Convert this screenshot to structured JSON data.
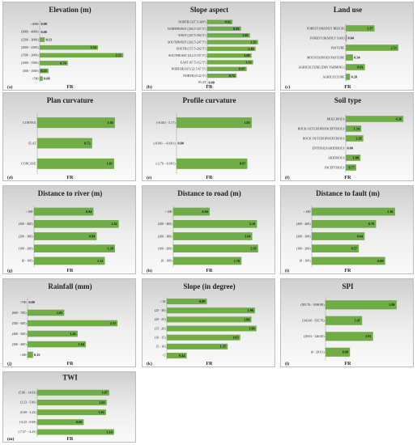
{
  "axis_label": "FR",
  "bar_color": "#70ad47",
  "chart_data": [
    {
      "type": "bar",
      "orientation": "horizontal",
      "tag": "(a)",
      "title": "Elevation (m)",
      "categories": [
        ">4000",
        "(3000 - 4000)",
        "(2500 - 3000)",
        "(2000 - 2500)",
        "(1500 - 2000)",
        "(1000 - 1500)",
        "(500 - 1000)",
        "<500"
      ],
      "values": [
        0.0,
        0.0,
        0.13,
        1.54,
        2.21,
        0.74,
        0.23,
        0.08
      ],
      "labels": [
        "0.00",
        "0.00",
        "0.13",
        "1.54",
        "2.21",
        "0.74",
        "0.23",
        "0.08"
      ],
      "xlim": [
        0,
        2.4
      ],
      "xlabel": "FR"
    },
    {
      "type": "bar",
      "orientation": "horizontal",
      "tag": "(b)",
      "title": "Slope aspect",
      "categories": [
        "NORTH (337.5-360°)",
        "NORTHWEST (292.5-337.5°)",
        "WEST (247.5-292.5°)",
        "SOUTHWEST (202.5-247.5°)",
        "SOUTH (157.5-202.5°)",
        "SOUTHEAST (112.5-157.5°)",
        "EAST (67.5-112.5°)",
        "NORTHEAST (22.5-67.5°)",
        "NORTH (0-22.5°)",
        "FLAT"
      ],
      "values": [
        0.62,
        0.83,
        1.05,
        1.25,
        1.19,
        1.09,
        1.13,
        0.97,
        0.72,
        0.0
      ],
      "labels": [
        "0.62",
        "0.83",
        "1.05",
        "1.25",
        "1.19",
        "1.09",
        "1.13",
        "0.97",
        "0.72",
        "0.00"
      ],
      "xlim": [
        0,
        1.5
      ],
      "xlabel": "FR"
    },
    {
      "type": "bar",
      "orientation": "horizontal",
      "tag": "(c)",
      "title": "Land use",
      "categories": [
        "FOREST (MAINLY BEECH)",
        "FOREST (MAINLY OAK)",
        "PASTURE",
        "MOUNTAINOUS PASTURE",
        "AGRICULTURE (DRY FARMING)",
        "AGRICULTURE"
      ],
      "values": [
        1.37,
        0.04,
        2.51,
        0.34,
        0.91,
        0.2
      ],
      "labels": [
        "1.37",
        "0.04",
        "2.51",
        "0.34",
        "0.91",
        "0.20"
      ],
      "xlim": [
        0,
        2.9
      ],
      "xlabel": "FR"
    },
    {
      "type": "bar",
      "orientation": "horizontal",
      "tag": "(d)",
      "title": "Plan curvature",
      "categories": [
        "CONVEX",
        "FLAT",
        "CONCAVE"
      ],
      "values": [
        1.02,
        0.72,
        1.01
      ],
      "labels": [
        "1.02",
        "0.72",
        "1.01"
      ],
      "xlim": [
        0,
        1.15
      ],
      "xlabel": "FR"
    },
    {
      "type": "bar",
      "orientation": "horizontal",
      "tag": "(e)",
      "title": "Profile curvature",
      "categories": [
        "(+0.001 - 5.17)",
        "(-0.001 - +0.001)",
        "(-2.76 - -0.001)"
      ],
      "values": [
        1.03,
        0.0,
        0.97
      ],
      "labels": [
        "1.03",
        "0.00",
        "0.97"
      ],
      "xlim": [
        0,
        1.2
      ],
      "xlabel": "FR"
    },
    {
      "type": "bar",
      "orientation": "horizontal",
      "tag": "(f)",
      "title": "Soil type",
      "categories": [
        "MOLLISOLS",
        "ROCK OUTCROPS/INCEPTISOLS",
        "ROCK OUTCROPS/ENTISOLS",
        "ENTISOLS/ARIDISOLS",
        "ARIDISOLS",
        "INCEPTISOLS"
      ],
      "values": [
        4.26,
        1.14,
        1.29,
        0.0,
        1.08,
        0.77
      ],
      "labels": [
        "4.26",
        "1.14",
        "1.29",
        "0.00",
        "1.08",
        "0.77"
      ],
      "xlim": [
        0,
        4.5
      ],
      "xlabel": "FR"
    },
    {
      "type": "bar",
      "orientation": "horizontal",
      "tag": "(g)",
      "title": "Distance to river (m)",
      "categories": [
        "> 400",
        "(300 - 400)",
        "(200 - 300)",
        "(100 - 200)",
        "(0 - 100)"
      ],
      "values": [
        0.94,
        1.34,
        0.99,
        1.28,
        1.12
      ],
      "labels": [
        "0.94",
        "1.34",
        "0.99",
        "1.28",
        "1.12"
      ],
      "xlim": [
        0,
        1.5
      ],
      "xlabel": "FR"
    },
    {
      "type": "bar",
      "orientation": "horizontal",
      "tag": "(h)",
      "title": "Distance to road (m)",
      "categories": [
        "> 400",
        "(300 - 400)",
        "(200 - 300)",
        "(100 - 200)",
        "(0 - 100)"
      ],
      "values": [
        0.94,
        2.16,
        2.04,
        2.19,
        1.76
      ],
      "labels": [
        "0.94",
        "2.16",
        "2.04",
        "2.19",
        "1.76"
      ],
      "xlim": [
        0,
        2.45
      ],
      "xlabel": "FR"
    },
    {
      "type": "bar",
      "orientation": "horizontal",
      "tag": "(i)",
      "title": "Distance to fault (m)",
      "categories": [
        "> 400",
        "(300 - 400)",
        "(200 - 300)",
        "(100 - 200)",
        "(0 - 100)"
      ],
      "values": [
        1.01,
        0.78,
        0.64,
        0.57,
        0.89
      ],
      "labels": [
        "1.01",
        "0.78",
        "0.64",
        "0.57",
        "0.89"
      ],
      "xlim": [
        0,
        1.15
      ],
      "xlabel": "FR"
    },
    {
      "type": "bar",
      "orientation": "horizontal",
      "tag": "(j)",
      "title": "Rainfall (mm)",
      "categories": [
        ">700",
        "(600 - 700)",
        "(500 - 600)",
        "(400 - 500)",
        "(300 - 400)",
        "<300"
      ],
      "values": [
        0.0,
        1.03,
        2.53,
        1.41,
        1.64,
        0.15
      ],
      "labels": [
        "0.00",
        "1.03",
        "2.53",
        "1.41",
        "1.64",
        "0.15"
      ],
      "xlim": [
        0,
        2.85
      ],
      "xlabel": "FR"
    },
    {
      "type": "bar",
      "orientation": "horizontal",
      "tag": "(k)",
      "title": "Slope (in degree)",
      "categories": [
        "> 30",
        "(25 - 30)",
        "(20 - 25)",
        "(15 - 20)",
        "(10 - 15)",
        "(5 - 10)",
        "<5"
      ],
      "values": [
        0.89,
        1.96,
        1.88,
        1.99,
        1.63,
        1.35,
        0.44
      ],
      "labels": [
        "0.89",
        "1.96",
        "1.88",
        "1.99",
        "1.63",
        "1.35",
        "0.44"
      ],
      "xlim": [
        0,
        2.25
      ],
      "xlabel": "FR"
    },
    {
      "type": "bar",
      "orientation": "horizontal",
      "tag": "(l)",
      "title": "SPI",
      "categories": [
        "(505.76 - 1698.98)",
        "(146.60 - 505.76)",
        "(28.61 - 146.60)",
        "(0 - 28.61)"
      ],
      "values": [
        2.86,
        1.47,
        1.91,
        0.98
      ],
      "labels": [
        "2.86",
        "1.47",
        "1.91",
        "0.98"
      ],
      "xlim": [
        0,
        3.1
      ],
      "xlabel": "FR"
    },
    {
      "type": "bar",
      "orientation": "horizontal",
      "tag": "(m)",
      "title": "TWI",
      "categories": [
        "(5.86 - 14.03)",
        "(3.23 - 5.86)",
        "(0.68 - 3.23)",
        "(-4.25 - 0.68)",
        "(-7.57 - -4.25)"
      ],
      "values": [
        1.07,
        1.03,
        1.02,
        0.69,
        1.14
      ],
      "labels": [
        "1.07",
        "1.03",
        "1.02",
        "0.69",
        "1.14"
      ],
      "xlim": [
        0,
        1.3
      ],
      "xlabel": "FR"
    }
  ]
}
